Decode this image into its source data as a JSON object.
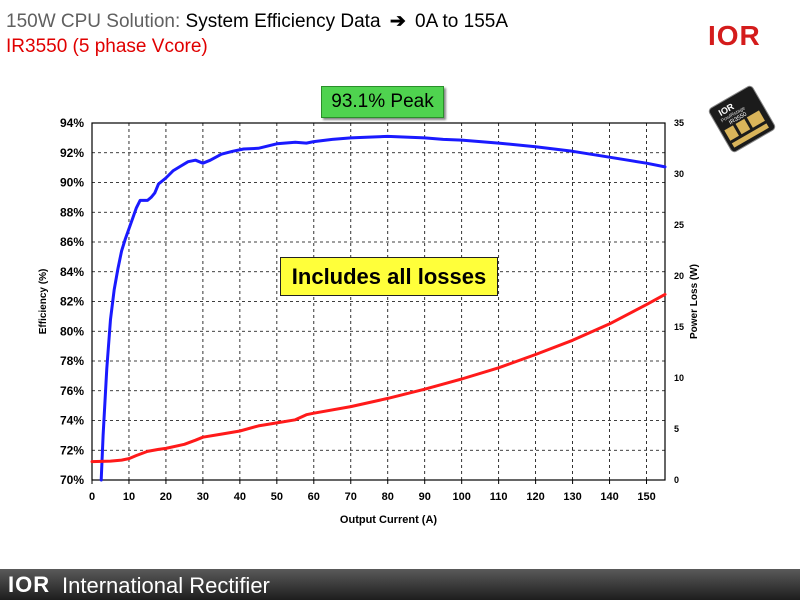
{
  "slide": {
    "title_prefix": "150W CPU Solution:",
    "title_main": "System Efficiency Data",
    "title_arrow": "➔",
    "title_range": "0A to 155A",
    "subtitle": "IR3550 (5 phase Vcore)",
    "logo_text": "IOR",
    "chip_brand": "IOR",
    "chip_line": "PowIRstage",
    "chip_part": "IR3550",
    "peak_label": "93.1% Peak",
    "losses_label": "Includes all losses",
    "footer_logo": "IOR",
    "footer_company": "International Rectifier"
  },
  "colors": {
    "efficiency": "#1a1aff",
    "power_loss": "#ff1a1a",
    "subtitle": "#e00000",
    "peak_box": "#4fd34f",
    "losses_box": "#ffff3a"
  },
  "chart_data": {
    "type": "line",
    "xlabel": "Output Current (A)",
    "ylabel": "Efficiency (%)",
    "y2label": "Power Loss (W)",
    "xlim": [
      0,
      155
    ],
    "ylim": [
      70,
      94
    ],
    "y2lim": [
      0,
      35
    ],
    "x_ticks": [
      0,
      10,
      20,
      30,
      40,
      50,
      60,
      70,
      80,
      90,
      100,
      110,
      120,
      130,
      140,
      150
    ],
    "y_ticks": [
      "70%",
      "72%",
      "74%",
      "76%",
      "78%",
      "80%",
      "82%",
      "84%",
      "86%",
      "88%",
      "90%",
      "92%",
      "94%"
    ],
    "y2_ticks": [
      0,
      5,
      10,
      15,
      20,
      25,
      30,
      35
    ],
    "grid": true,
    "series": [
      {
        "axis": "left",
        "x": [
          2.5,
          3,
          4,
          5,
          6,
          7,
          8,
          9,
          10,
          11,
          12,
          13,
          15,
          16,
          17,
          18,
          20,
          22,
          24,
          26,
          28,
          30,
          32,
          35,
          38,
          41,
          45,
          50,
          55,
          58,
          60,
          65,
          70,
          75,
          80,
          85,
          90,
          95,
          100,
          110,
          120,
          130,
          140,
          145,
          150,
          155
        ],
        "values": [
          70.0,
          73.0,
          77.5,
          80.8,
          82.8,
          84.2,
          85.4,
          86.2,
          86.9,
          87.6,
          88.3,
          88.8,
          88.8,
          89.0,
          89.3,
          89.9,
          90.3,
          90.8,
          91.1,
          91.4,
          91.5,
          91.3,
          91.5,
          91.9,
          92.1,
          92.25,
          92.3,
          92.6,
          92.7,
          92.65,
          92.75,
          92.9,
          93.0,
          93.05,
          93.1,
          93.05,
          93.0,
          92.9,
          92.85,
          92.65,
          92.4,
          92.1,
          91.7,
          91.5,
          91.3,
          91.05
        ]
      },
      {
        "axis": "right",
        "x": [
          0,
          5,
          8,
          10,
          12,
          15,
          18,
          20,
          25,
          28,
          30,
          35,
          40,
          45,
          50,
          55,
          58,
          60,
          70,
          80,
          90,
          100,
          110,
          120,
          130,
          140,
          150,
          155
        ],
        "values": [
          1.8,
          1.85,
          1.95,
          2.1,
          2.4,
          2.8,
          3.0,
          3.1,
          3.5,
          3.9,
          4.2,
          4.5,
          4.8,
          5.3,
          5.6,
          5.9,
          6.4,
          6.55,
          7.2,
          8.0,
          8.9,
          9.9,
          11.0,
          12.3,
          13.7,
          15.3,
          17.2,
          18.2
        ]
      }
    ]
  }
}
